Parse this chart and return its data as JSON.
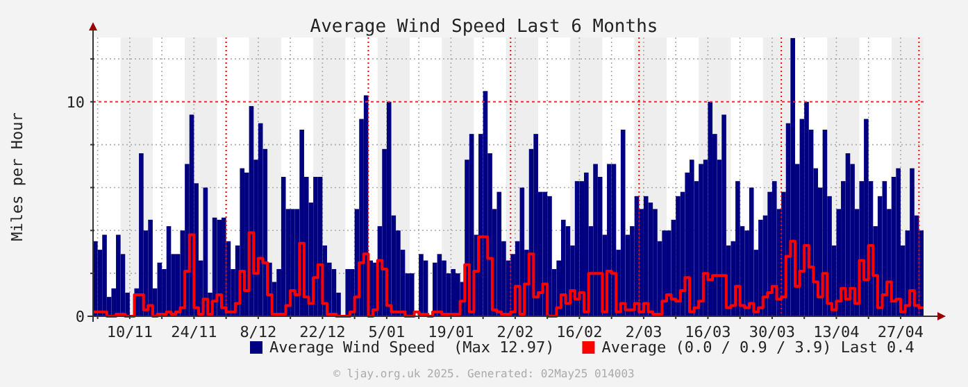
{
  "chart_data": {
    "type": "bar",
    "title": "Average Wind Speed Last 6 Months",
    "ylabel": "Miles per Hour",
    "x": [
      "2024-11-02",
      "2024-11-03",
      "2024-11-04",
      "2024-11-05",
      "2024-11-06",
      "2024-11-07",
      "2024-11-08",
      "2024-11-09",
      "2024-11-10",
      "2024-11-11",
      "2024-11-12",
      "2024-11-13",
      "2024-11-14",
      "2024-11-15",
      "2024-11-16",
      "2024-11-17",
      "2024-11-18",
      "2024-11-19",
      "2024-11-20",
      "2024-11-21",
      "2024-11-22",
      "2024-11-23",
      "2024-11-24",
      "2024-11-25",
      "2024-11-26",
      "2024-11-27",
      "2024-11-28",
      "2024-11-29",
      "2024-11-30",
      "2024-12-01",
      "2024-12-02",
      "2024-12-03",
      "2024-12-04",
      "2024-12-05",
      "2024-12-06",
      "2024-12-07",
      "2024-12-08",
      "2024-12-09",
      "2024-12-10",
      "2024-12-11",
      "2024-12-12",
      "2024-12-13",
      "2024-12-14",
      "2024-12-15",
      "2024-12-16",
      "2024-12-17",
      "2024-12-18",
      "2024-12-19",
      "2024-12-20",
      "2024-12-21",
      "2024-12-22",
      "2024-12-23",
      "2024-12-24",
      "2024-12-25",
      "2024-12-26",
      "2024-12-27",
      "2024-12-28",
      "2024-12-29",
      "2024-12-30",
      "2024-12-31",
      "2025-01-01",
      "2025-01-02",
      "2025-01-03",
      "2025-01-04",
      "2025-01-05",
      "2025-01-06",
      "2025-01-07",
      "2025-01-08",
      "2025-01-09",
      "2025-01-10",
      "2025-01-11",
      "2025-01-12",
      "2025-01-13",
      "2025-01-14",
      "2025-01-15",
      "2025-01-16",
      "2025-01-17",
      "2025-01-18",
      "2025-01-19",
      "2025-01-20",
      "2025-01-21",
      "2025-01-22",
      "2025-01-23",
      "2025-01-24",
      "2025-01-25",
      "2025-01-26",
      "2025-01-27",
      "2025-01-28",
      "2025-01-29",
      "2025-01-30",
      "2025-01-31",
      "2025-02-01",
      "2025-02-02",
      "2025-02-03",
      "2025-02-04",
      "2025-02-05",
      "2025-02-06",
      "2025-02-07",
      "2025-02-08",
      "2025-02-09",
      "2025-02-10",
      "2025-02-11",
      "2025-02-12",
      "2025-02-13",
      "2025-02-14",
      "2025-02-15",
      "2025-02-16",
      "2025-02-17",
      "2025-02-18",
      "2025-02-19",
      "2025-02-20",
      "2025-02-21",
      "2025-02-22",
      "2025-02-23",
      "2025-02-24",
      "2025-02-25",
      "2025-02-26",
      "2025-02-27",
      "2025-02-28",
      "2025-03-01",
      "2025-03-02",
      "2025-03-03",
      "2025-03-04",
      "2025-03-05",
      "2025-03-06",
      "2025-03-07",
      "2025-03-08",
      "2025-03-09",
      "2025-03-10",
      "2025-03-11",
      "2025-03-12",
      "2025-03-13",
      "2025-03-14",
      "2025-03-15",
      "2025-03-16",
      "2025-03-17",
      "2025-03-18",
      "2025-03-19",
      "2025-03-20",
      "2025-03-21",
      "2025-03-22",
      "2025-03-23",
      "2025-03-24",
      "2025-03-25",
      "2025-03-26",
      "2025-03-27",
      "2025-03-28",
      "2025-03-29",
      "2025-03-30",
      "2025-03-31",
      "2025-04-01",
      "2025-04-02",
      "2025-04-03",
      "2025-04-04",
      "2025-04-05",
      "2025-04-06",
      "2025-04-07",
      "2025-04-08",
      "2025-04-09",
      "2025-04-10",
      "2025-04-11",
      "2025-04-12",
      "2025-04-13",
      "2025-04-14",
      "2025-04-15",
      "2025-04-16",
      "2025-04-17",
      "2025-04-18",
      "2025-04-19",
      "2025-04-20",
      "2025-04-21",
      "2025-04-22",
      "2025-04-23",
      "2025-04-24",
      "2025-04-25",
      "2025-04-26",
      "2025-04-27",
      "2025-04-28",
      "2025-04-29",
      "2025-04-30",
      "2025-05-01"
    ],
    "series": [
      {
        "name": "Average Wind Speed  (Max 12.97)",
        "color": "#000080",
        "values": [
          3.5,
          3.1,
          3.8,
          0.9,
          1.3,
          3.8,
          2.9,
          1.1,
          0,
          1.3,
          7.6,
          4.0,
          4.5,
          1.3,
          2.5,
          2.2,
          4.2,
          2.9,
          2.9,
          4.0,
          7.1,
          9.4,
          6.2,
          2.6,
          6.0,
          1.1,
          4.6,
          4.5,
          4.6,
          3.5,
          2.2,
          3.3,
          6.9,
          6.7,
          9.8,
          7.3,
          9.0,
          7.8,
          2.5,
          1.6,
          2.2,
          6.5,
          5.0,
          5.0,
          5.0,
          8.7,
          6.5,
          5.3,
          6.5,
          6.5,
          3.3,
          2.5,
          2.2,
          1.1,
          0,
          2.2,
          2.2,
          5.0,
          9.2,
          10.3,
          2.6,
          2.5,
          4.2,
          7.8,
          10.0,
          4.7,
          4.0,
          3.1,
          2.0,
          2.0,
          0,
          2.9,
          2.6,
          0,
          2.5,
          2.9,
          2.6,
          2.0,
          2.2,
          2.0,
          1.6,
          7.3,
          8.5,
          3.8,
          8.5,
          10.5,
          7.6,
          5.0,
          5.8,
          3.5,
          2.6,
          2.9,
          3.5,
          6.0,
          3.1,
          7.8,
          8.5,
          5.8,
          5.8,
          5.6,
          2.2,
          2.6,
          4.5,
          4.2,
          3.3,
          6.3,
          6.3,
          6.7,
          4.2,
          7.1,
          6.5,
          3.8,
          7.1,
          7.1,
          3.1,
          8.7,
          3.8,
          4.2,
          5.6,
          5.0,
          5.6,
          5.3,
          5.0,
          3.5,
          4.0,
          4.0,
          4.5,
          5.6,
          5.8,
          6.7,
          7.3,
          6.3,
          7.1,
          7.3,
          10.0,
          8.5,
          7.3,
          9.4,
          3.3,
          3.5,
          6.3,
          4.2,
          4.0,
          6.0,
          3.1,
          4.5,
          4.7,
          5.8,
          6.3,
          5.0,
          5.8,
          9.0,
          12.97,
          7.1,
          9.2,
          10.0,
          8.7,
          6.9,
          6.0,
          8.7,
          5.6,
          3.3,
          5.0,
          6.3,
          7.6,
          7.1,
          5.0,
          6.3,
          9.2,
          6.3,
          4.2,
          5.6,
          6.3,
          5.0,
          6.5,
          6.9,
          3.3,
          4.0,
          6.9,
          4.7,
          4.0
        ]
      },
      {
        "name": "Average (0.0 / 0.9 / 3.9) Last 0.4",
        "type": "step",
        "color": "#ff0000",
        "values": [
          0.2,
          0.2,
          0.2,
          0,
          0,
          0.1,
          0.1,
          0,
          0,
          1.0,
          1.0,
          0.3,
          0.5,
          0,
          0.1,
          0.1,
          0.2,
          0.1,
          0.2,
          0.4,
          2.1,
          3.8,
          0.4,
          0.1,
          0.8,
          0.1,
          0.7,
          1.0,
          0.4,
          0.2,
          0.2,
          0.6,
          2.1,
          1.2,
          3.9,
          2.0,
          2.7,
          2.5,
          1.0,
          0.1,
          0.1,
          0.1,
          0.5,
          1.2,
          1.0,
          3.4,
          0.9,
          0.6,
          1.8,
          2.4,
          0.6,
          0.1,
          0.1,
          0,
          0,
          0,
          0.2,
          0.9,
          2.5,
          2.9,
          0,
          0.3,
          2.6,
          2.2,
          0.5,
          0.2,
          0.2,
          0.2,
          0,
          0,
          0.2,
          0.1,
          0.1,
          0,
          0.2,
          0.2,
          0.1,
          0.1,
          0.1,
          0.1,
          0.7,
          2.4,
          0.2,
          2.1,
          3.7,
          3.7,
          2.7,
          0.3,
          0.2,
          0.1,
          0.1,
          0.2,
          1.4,
          0.1,
          1.5,
          2.9,
          0.9,
          1.1,
          1.5,
          0,
          0,
          0.4,
          1.0,
          0.6,
          1.2,
          0.8,
          1.1,
          0.2,
          2.0,
          2.0,
          2.0,
          0.2,
          2.1,
          2.0,
          0.2,
          0.6,
          0.3,
          0.3,
          0.6,
          0.2,
          0.6,
          0.2,
          0.1,
          0.1,
          0.7,
          1.0,
          0.8,
          0.7,
          1.2,
          1.8,
          0.2,
          0.4,
          0.7,
          2.0,
          1.7,
          1.9,
          1.9,
          1.9,
          0.4,
          0.5,
          1.4,
          0.5,
          0.4,
          0.6,
          0.2,
          0.4,
          0.9,
          1.1,
          1.4,
          0.8,
          0.9,
          2.8,
          3.5,
          1.4,
          2.1,
          3.3,
          2.3,
          1.6,
          0.9,
          2.0,
          0.6,
          0.3,
          0.7,
          1.3,
          0.8,
          1.3,
          0.6,
          2.6,
          1.7,
          3.3,
          1.9,
          0.4,
          1.0,
          1.6,
          0.7,
          0.8,
          0.2,
          0.5,
          1.2,
          0.5,
          0.4
        ]
      }
    ],
    "xlim": [
      "2024-11-02",
      "2025-05-02"
    ],
    "xticks": [
      {
        "value": "2024-11-03",
        "label": null
      },
      {
        "value": "2024-11-10",
        "label": "10/11"
      },
      {
        "value": "2024-11-17",
        "label": null
      },
      {
        "value": "2024-11-24",
        "label": "24/11"
      },
      {
        "value": "2024-12-01",
        "label": null
      },
      {
        "value": "2024-12-08",
        "label": "8/12"
      },
      {
        "value": "2024-12-15",
        "label": null
      },
      {
        "value": "2024-12-22",
        "label": "22/12"
      },
      {
        "value": "2024-12-29",
        "label": null
      },
      {
        "value": "2025-01-05",
        "label": "5/01"
      },
      {
        "value": "2025-01-12",
        "label": null
      },
      {
        "value": "2025-01-19",
        "label": "19/01"
      },
      {
        "value": "2025-01-26",
        "label": null
      },
      {
        "value": "2025-02-02",
        "label": "2/02"
      },
      {
        "value": "2025-02-09",
        "label": null
      },
      {
        "value": "2025-02-16",
        "label": "16/02"
      },
      {
        "value": "2025-02-23",
        "label": null
      },
      {
        "value": "2025-03-02",
        "label": "2/03"
      },
      {
        "value": "2025-03-09",
        "label": null
      },
      {
        "value": "2025-03-16",
        "label": "16/03"
      },
      {
        "value": "2025-03-23",
        "label": null
      },
      {
        "value": "2025-03-30",
        "label": "30/03"
      },
      {
        "value": "2025-04-06",
        "label": null
      },
      {
        "value": "2025-04-13",
        "label": "13/04"
      },
      {
        "value": "2025-04-20",
        "label": null
      },
      {
        "value": "2025-04-27",
        "label": "27/04"
      }
    ],
    "ylim": [
      0,
      13
    ],
    "yticks": [
      0,
      {
        "value": 2,
        "label": null
      },
      {
        "value": 4,
        "label": null
      },
      {
        "value": 6,
        "label": null
      },
      {
        "value": 8,
        "label": null
      },
      10,
      {
        "value": 12,
        "label": null
      }
    ],
    "grid": true,
    "legend": "bottom",
    "ref_lines": [
      {
        "axis": "y",
        "value": 10,
        "color": "#e83030",
        "line_style": "dashed"
      },
      {
        "axis": "x",
        "value": "2024-12-01",
        "color": "#ff0000",
        "line_style": "dotted"
      },
      {
        "axis": "x",
        "value": "2025-01-01",
        "color": "#ff0000",
        "line_style": "dotted"
      },
      {
        "axis": "x",
        "value": "2025-02-01",
        "color": "#ff0000",
        "line_style": "dotted"
      },
      {
        "axis": "x",
        "value": "2025-03-01",
        "color": "#ff0000",
        "line_style": "dotted"
      },
      {
        "axis": "x",
        "value": "2025-04-01",
        "color": "#ff0000",
        "line_style": "dotted"
      },
      {
        "axis": "x",
        "value": "2025-05-01",
        "color": "#ff0000",
        "line_style": "dotted"
      }
    ],
    "bands": [
      {
        "axis": "x",
        "from": "2024-11-08",
        "to": "2024-11-15",
        "color": "#eeeeee"
      },
      {
        "axis": "x",
        "from": "2024-11-22",
        "to": "2024-11-29",
        "color": "#eeeeee"
      },
      {
        "axis": "x",
        "from": "2024-12-06",
        "to": "2024-12-13",
        "color": "#eeeeee"
      },
      {
        "axis": "x",
        "from": "2024-12-20",
        "to": "2024-12-27",
        "color": "#eeeeee"
      },
      {
        "axis": "x",
        "from": "2025-01-03",
        "to": "2025-01-10",
        "color": "#eeeeee"
      },
      {
        "axis": "x",
        "from": "2025-01-17",
        "to": "2025-01-24",
        "color": "#eeeeee"
      },
      {
        "axis": "x",
        "from": "2025-01-31",
        "to": "2025-02-07",
        "color": "#eeeeee"
      },
      {
        "axis": "x",
        "from": "2025-02-14",
        "to": "2025-02-21",
        "color": "#eeeeee"
      },
      {
        "axis": "x",
        "from": "2025-02-28",
        "to": "2025-03-07",
        "color": "#eeeeee"
      },
      {
        "axis": "x",
        "from": "2025-03-14",
        "to": "2025-03-21",
        "color": "#eeeeee"
      },
      {
        "axis": "x",
        "from": "2025-03-28",
        "to": "2025-04-04",
        "color": "#eeeeee"
      },
      {
        "axis": "x",
        "from": "2025-04-11",
        "to": "2025-04-18",
        "color": "#eeeeee"
      },
      {
        "axis": "x",
        "from": "2025-04-25",
        "to": "2025-05-02",
        "color": "#eeeeee"
      }
    ],
    "annotations": [
      "© ljay.org.uk 2025. Generated: 02May25 014003"
    ]
  }
}
